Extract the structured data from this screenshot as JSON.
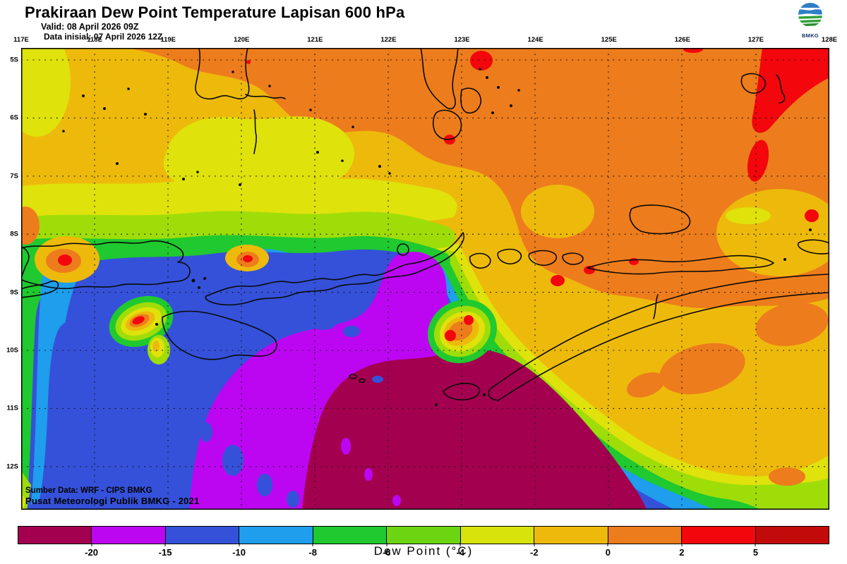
{
  "header": {
    "title": "Prakiraan Dew Point Temperature Lapisan 600 hPa",
    "valid": "Valid: 08 April 2026 09Z",
    "data_initial": "Data inisial: 07 April 2026 12Z",
    "logo": "BMKG"
  },
  "map": {
    "lon_labels": [
      "117E",
      "118E",
      "119E",
      "120E",
      "121E",
      "122E",
      "123E",
      "124E",
      "125E",
      "126E",
      "127E",
      "128E"
    ],
    "lat_labels": [
      "5S",
      "6S",
      "7S",
      "8S",
      "9S",
      "10S",
      "11S",
      "12S"
    ],
    "credit1": "Sumber Data: WRF - CIPS BMKG",
    "credit2": "Pusat Meteorologi Publik BMKG - 2021"
  },
  "legend": {
    "title": "Dew Point (°C)",
    "ticks": [
      "-20",
      "-15",
      "-10",
      "-8",
      "-6",
      "-4",
      "-2",
      "0",
      "2",
      "5"
    ],
    "colors": [
      "#A30050",
      "#BC06F2",
      "#3551D9",
      "#1E9EEC",
      "#1FC92F",
      "#6CD411",
      "#D8E30B",
      "#EDBA0B",
      "#ED7C1C",
      "#F3060C",
      "#C20A0A"
    ]
  }
}
